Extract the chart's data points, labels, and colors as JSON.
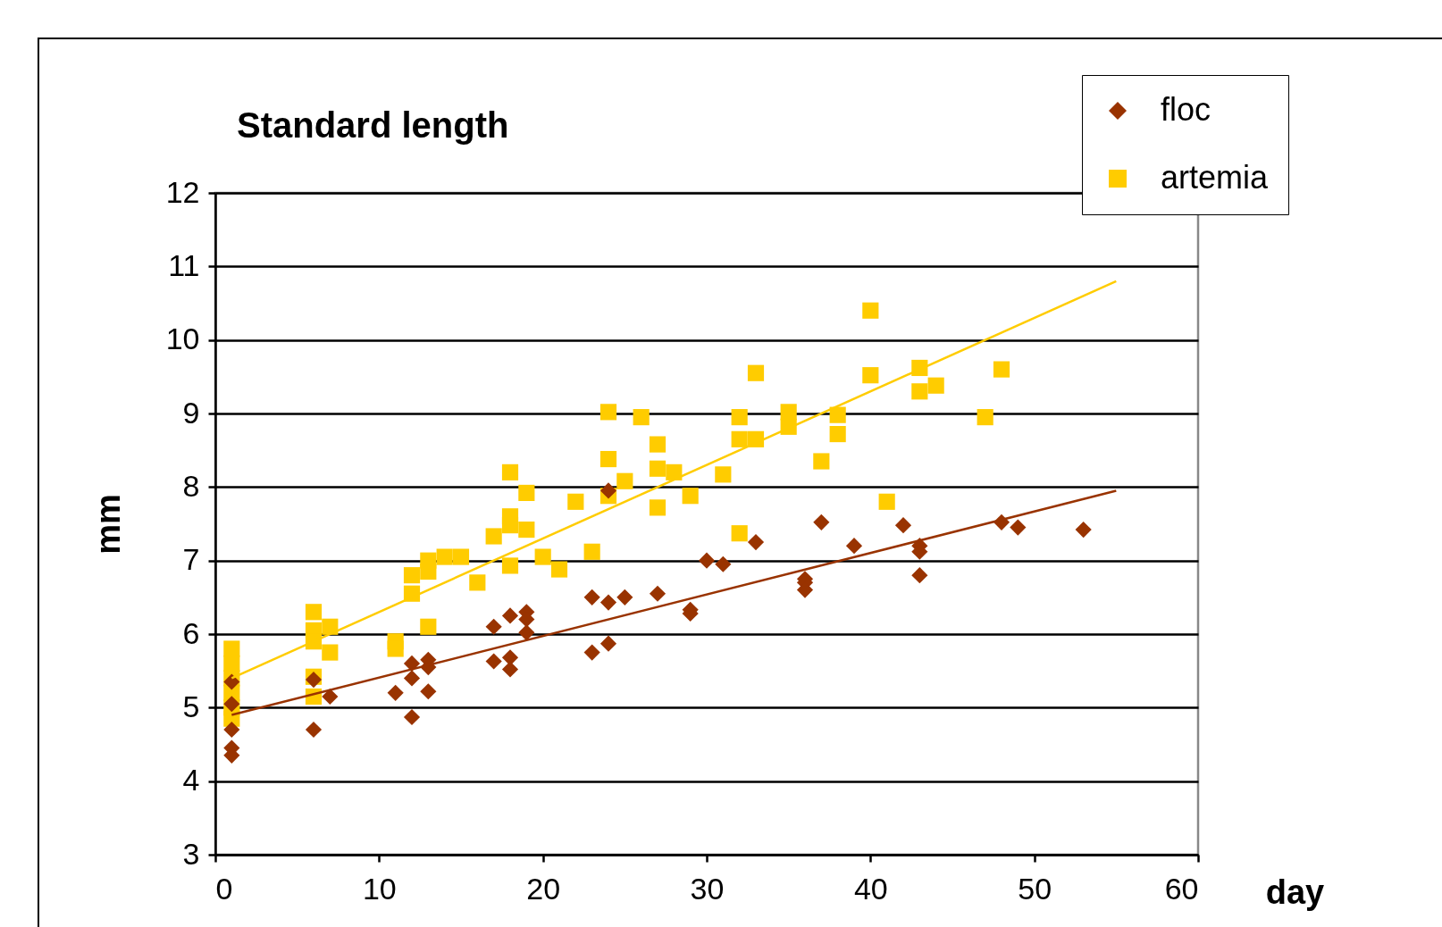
{
  "chart_data": {
    "type": "scatter",
    "title": "Standard length",
    "xlabel": "day",
    "ylabel": "mm",
    "xlim": [
      0,
      60
    ],
    "xticks": [
      0,
      10,
      20,
      30,
      40,
      50,
      60
    ],
    "ylim": [
      3,
      12
    ],
    "yticks": [
      3,
      4,
      5,
      6,
      7,
      8,
      9,
      10,
      11,
      12
    ],
    "grid": "y",
    "legend": "top right",
    "series": [
      {
        "name": "floc",
        "color": "#993300",
        "marker": "diamond",
        "x": [
          1,
          1,
          1,
          1,
          1,
          6,
          6,
          7,
          11,
          12,
          12,
          12,
          13,
          13,
          13,
          17,
          17,
          18,
          18,
          18,
          19,
          19,
          19,
          23,
          23,
          24,
          24,
          24,
          25,
          27,
          29,
          29,
          30,
          31,
          33,
          36,
          36,
          36,
          37,
          39,
          42,
          43,
          43,
          43,
          48,
          49,
          53
        ],
        "values": [
          5.35,
          5.05,
          4.7,
          4.45,
          4.35,
          5.38,
          4.7,
          5.15,
          5.2,
          5.6,
          5.4,
          4.87,
          5.65,
          5.55,
          5.22,
          6.1,
          5.63,
          6.25,
          5.68,
          5.52,
          6.3,
          6.2,
          6.02,
          6.5,
          5.75,
          6.43,
          5.87,
          7.95,
          6.5,
          6.55,
          6.33,
          6.28,
          7.0,
          6.95,
          7.25,
          6.75,
          6.7,
          6.6,
          7.52,
          7.2,
          7.48,
          7.2,
          7.12,
          6.8,
          7.52,
          7.45,
          7.42
        ]
      },
      {
        "name": "artemia",
        "color": "#ffcc00",
        "marker": "square",
        "x": [
          1,
          1,
          1,
          1,
          1,
          1,
          6,
          6,
          6,
          6,
          6,
          7,
          7,
          11,
          11,
          12,
          12,
          13,
          13,
          13,
          14,
          15,
          16,
          17,
          18,
          18,
          18,
          18,
          19,
          19,
          20,
          21,
          22,
          23,
          24,
          24,
          24,
          25,
          26,
          27,
          27,
          27,
          28,
          29,
          31,
          32,
          32,
          32,
          33,
          33,
          35,
          35,
          37,
          38,
          38,
          40,
          40,
          41,
          43,
          43,
          44,
          47,
          48
        ],
        "values": [
          5.8,
          5.6,
          5.4,
          5.2,
          5.0,
          4.85,
          6.3,
          6.05,
          5.9,
          5.42,
          5.15,
          6.1,
          5.75,
          5.9,
          5.8,
          6.8,
          6.55,
          7.0,
          6.85,
          6.1,
          7.05,
          7.05,
          6.7,
          7.33,
          8.2,
          7.6,
          7.48,
          6.93,
          7.92,
          7.42,
          7.05,
          6.88,
          7.8,
          7.12,
          9.02,
          8.38,
          7.88,
          8.08,
          8.95,
          8.58,
          8.25,
          7.72,
          8.2,
          7.88,
          8.17,
          8.95,
          8.65,
          7.37,
          8.65,
          9.55,
          9.02,
          8.82,
          8.35,
          8.98,
          8.72,
          10.4,
          9.52,
          7.8,
          9.62,
          9.3,
          9.38,
          8.95,
          9.6
        ]
      },
      {
        "type": "line",
        "color": "#993300",
        "x": [
          1,
          55
        ],
        "values": [
          4.9,
          7.95
        ]
      },
      {
        "type": "line",
        "color": "#ffcc00",
        "x": [
          1,
          55
        ],
        "values": [
          5.4,
          10.8
        ]
      }
    ]
  }
}
